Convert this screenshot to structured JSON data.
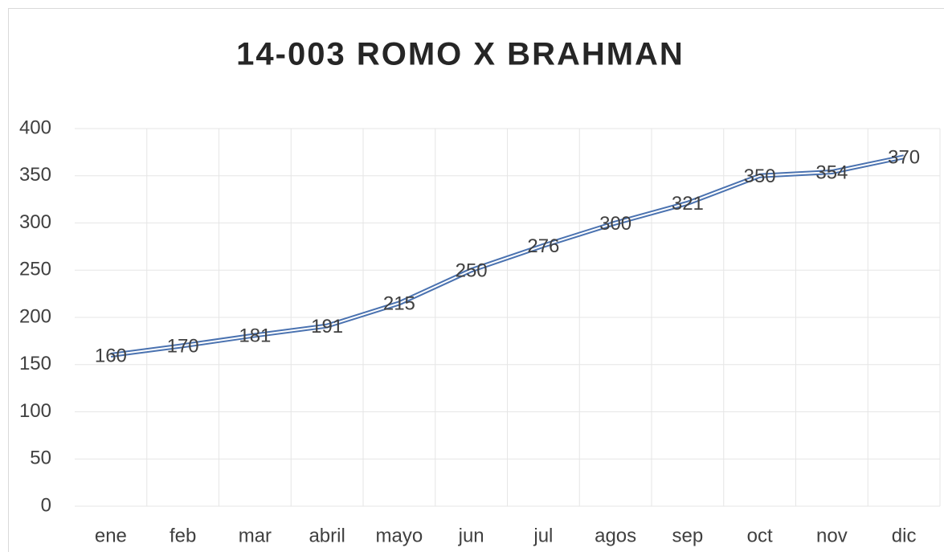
{
  "chart_data": {
    "type": "line",
    "title": "14-003 ROMO X BRAHMAN",
    "categories": [
      "ene",
      "feb",
      "mar",
      "abril",
      "mayo",
      "jun",
      "jul",
      "agos",
      "sep",
      "oct",
      "nov",
      "dic"
    ],
    "values": [
      160,
      170,
      181,
      191,
      215,
      250,
      276,
      300,
      321,
      350,
      354,
      370
    ],
    "color": "#4a72b0",
    "ylim": [
      0,
      400
    ],
    "yticks": [
      0,
      50,
      100,
      150,
      200,
      250,
      300,
      350,
      400
    ],
    "grid": true
  }
}
